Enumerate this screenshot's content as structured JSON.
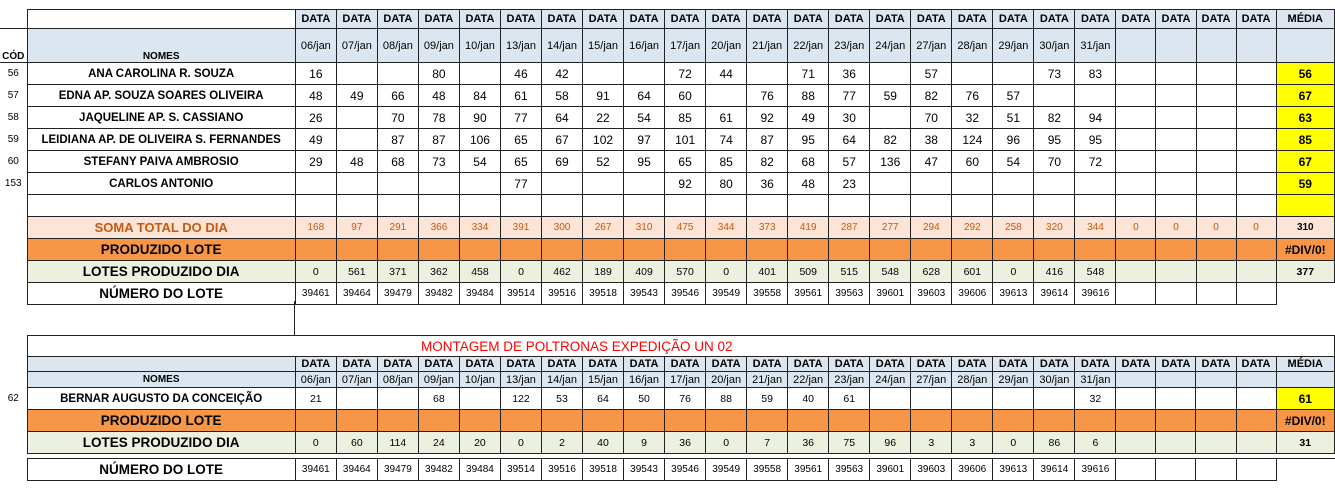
{
  "section1": {
    "header": {
      "cod": "CÓD",
      "nomes": "NOMES",
      "data_label": "DATA",
      "media_label": "MÉDIA",
      "dates": [
        "06/jan",
        "07/jan",
        "08/jan",
        "09/jan",
        "10/jan",
        "13/jan",
        "14/jan",
        "15/jan",
        "16/jan",
        "17/jan",
        "20/jan",
        "21/jan",
        "22/jan",
        "23/jan",
        "24/jan",
        "27/jan",
        "28/jan",
        "29/jan",
        "30/jan",
        "31/jan",
        "",
        "",
        "",
        ""
      ]
    },
    "rows": [
      {
        "cod": "56",
        "name": "ANA CAROLINA R. SOUZA",
        "values": [
          "16",
          "",
          "",
          "80",
          "",
          "46",
          "42",
          "",
          "",
          "72",
          "44",
          "",
          "71",
          "36",
          "",
          "57",
          "",
          "",
          "73",
          "83",
          "",
          "",
          "",
          ""
        ],
        "media": "56"
      },
      {
        "cod": "57",
        "name": "EDNA AP. SOUZA SOARES OLIVEIRA",
        "values": [
          "48",
          "49",
          "66",
          "48",
          "84",
          "61",
          "58",
          "91",
          "64",
          "60",
          "",
          "76",
          "88",
          "77",
          "59",
          "82",
          "76",
          "57",
          "",
          "",
          "",
          "",
          "",
          ""
        ],
        "media": "67"
      },
      {
        "cod": "58",
        "name": "JAQUELINE AP.  S. CASSIANO",
        "values": [
          "26",
          "",
          "70",
          "78",
          "90",
          "77",
          "64",
          "22",
          "54",
          "85",
          "61",
          "92",
          "49",
          "30",
          "",
          "70",
          "32",
          "51",
          "82",
          "94",
          "",
          "",
          "",
          ""
        ],
        "media": "63"
      },
      {
        "cod": "59",
        "name": "LEIDIANA AP. DE OLIVEIRA S. FERNANDES",
        "values": [
          "49",
          "",
          "87",
          "87",
          "106",
          "65",
          "67",
          "102",
          "97",
          "101",
          "74",
          "87",
          "95",
          "64",
          "82",
          "38",
          "124",
          "96",
          "95",
          "95",
          "",
          "",
          "",
          ""
        ],
        "media": "85"
      },
      {
        "cod": "60",
        "name": "STEFANY PAIVA AMBROSIO",
        "values": [
          "29",
          "48",
          "68",
          "73",
          "54",
          "65",
          "69",
          "52",
          "95",
          "65",
          "85",
          "82",
          "68",
          "57",
          "136",
          "47",
          "60",
          "54",
          "70",
          "72",
          "",
          "",
          "",
          ""
        ],
        "media": "67"
      },
      {
        "cod": "153",
        "name": "CARLOS ANTONIO",
        "values": [
          "",
          "",
          "",
          "",
          "",
          "77",
          "",
          "",
          "",
          "92",
          "80",
          "36",
          "48",
          "23",
          "",
          "",
          "",
          "",
          "",
          "",
          "",
          "",
          "",
          ""
        ],
        "media": "59"
      }
    ],
    "soma": {
      "label": "SOMA TOTAL DO DIA",
      "values": [
        "168",
        "97",
        "291",
        "366",
        "334",
        "391",
        "300",
        "267",
        "310",
        "475",
        "344",
        "373",
        "419",
        "287",
        "277",
        "294",
        "292",
        "258",
        "320",
        "344",
        "0",
        "0",
        "0",
        "0"
      ],
      "media": "310"
    },
    "produzido": {
      "label": "PRODUZIDO LOTE",
      "media": "#DIV/0!"
    },
    "lotes": {
      "label": "LOTES PRODUZIDO DIA",
      "values": [
        "0",
        "561",
        "371",
        "362",
        "458",
        "0",
        "462",
        "189",
        "409",
        "570",
        "0",
        "401",
        "509",
        "515",
        "548",
        "628",
        "601",
        "0",
        "416",
        "548",
        "",
        "",
        "",
        ""
      ],
      "media": "377"
    },
    "numero": {
      "label": "NÚMERO DO LOTE",
      "values": [
        "39461",
        "39464",
        "39479",
        "39482",
        "39484",
        "39514",
        "39516",
        "39518",
        "39543",
        "39546",
        "39549",
        "39558",
        "39561",
        "39563",
        "39601",
        "39603",
        "39606",
        "39613",
        "39614",
        "39616",
        "",
        "",
        "",
        ""
      ]
    }
  },
  "section2": {
    "title": "MONTAGEM DE POLTRONAS EXPEDIÇÃO UN 02",
    "header": {
      "nomes": "NOMES",
      "data_label": "DATA",
      "media_label": "MÉDIA",
      "dates": [
        "06/jan",
        "07/jan",
        "08/jan",
        "09/jan",
        "10/jan",
        "13/jan",
        "14/jan",
        "15/jan",
        "16/jan",
        "17/jan",
        "20/jan",
        "21/jan",
        "22/jan",
        "23/jan",
        "24/jan",
        "27/jan",
        "28/jan",
        "29/jan",
        "30/jan",
        "31/jan",
        "",
        "",
        "",
        ""
      ]
    },
    "rows": [
      {
        "cod": "62",
        "name": "BERNAR AUGUSTO DA CONCEIÇÃO",
        "values": [
          "21",
          "",
          "",
          "68",
          "",
          "122",
          "53",
          "64",
          "50",
          "76",
          "88",
          "59",
          "40",
          "61",
          "",
          "",
          "",
          "",
          "",
          "32",
          "",
          "",
          "",
          ""
        ],
        "media": "61"
      }
    ],
    "produzido": {
      "label": "PRODUZIDO LOTE",
      "media": "#DIV/0!"
    },
    "lotes": {
      "label": "LOTES PRODUZIDO DIA",
      "values": [
        "0",
        "60",
        "114",
        "24",
        "20",
        "0",
        "2",
        "40",
        "9",
        "36",
        "0",
        "7",
        "36",
        "75",
        "96",
        "3",
        "3",
        "0",
        "86",
        "6",
        "",
        "",
        "",
        ""
      ],
      "media": "31"
    },
    "numero": {
      "label": "NÚMERO DO LOTE",
      "values": [
        "39461",
        "39464",
        "39479",
        "39482",
        "39484",
        "39514",
        "39516",
        "39518",
        "39543",
        "39546",
        "39549",
        "39558",
        "39561",
        "39563",
        "39601",
        "39603",
        "39606",
        "39613",
        "39614",
        "39616",
        "",
        "",
        "",
        ""
      ]
    }
  }
}
